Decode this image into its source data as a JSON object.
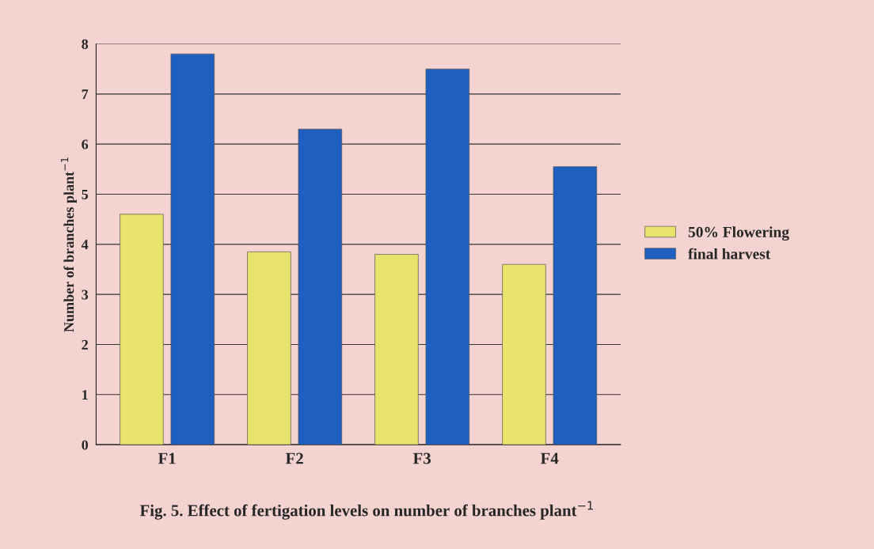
{
  "chart_data": {
    "type": "bar",
    "title": "Fig. 5. Effect of fertigation levels on number of branches plant$^{−1}$",
    "ylabel": "Number of branches plant$^{−1}$",
    "categories": [
      "F1",
      "F2",
      "F3",
      "F4"
    ],
    "series": [
      {
        "name": "50% Flowering",
        "color": "#e8e36a",
        "values": [
          4.6,
          3.85,
          3.8,
          3.6
        ]
      },
      {
        "name": "final harvest",
        "color": "#1f5fbf",
        "values": [
          7.8,
          6.3,
          7.5,
          5.55
        ]
      }
    ],
    "ylim": [
      0,
      8
    ],
    "yticks": [
      0,
      1,
      2,
      3,
      4,
      5,
      6,
      7,
      8
    ],
    "grid": "y",
    "legend": "right"
  }
}
